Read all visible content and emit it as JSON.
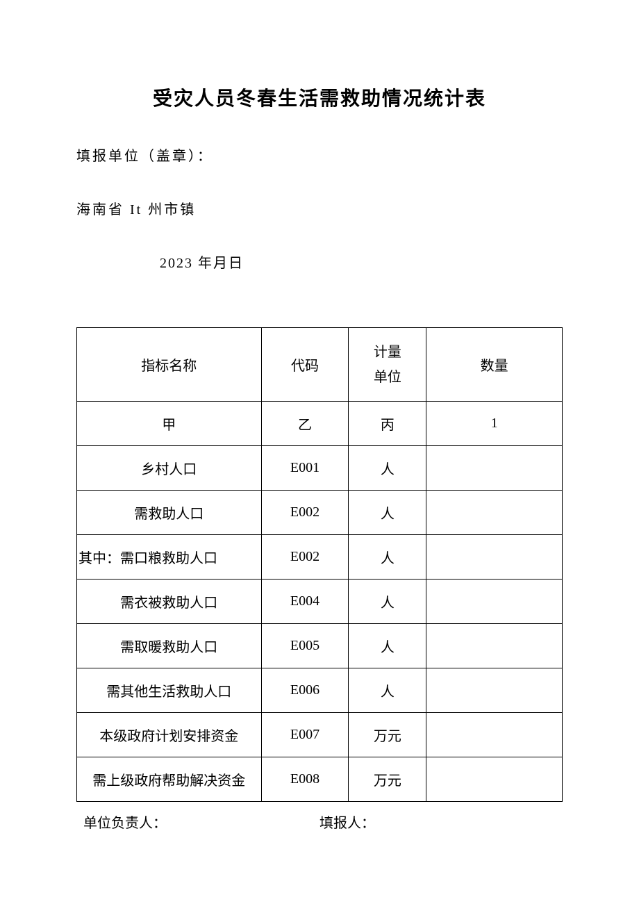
{
  "document": {
    "title": "受灾人员冬春生活需救助情况统计表",
    "reporting_unit_label": "填报单位（盖章）：",
    "location": "海南省 It 州市镇",
    "date": "2023 年月日",
    "footer": {
      "responsible_label": "单位负责人：",
      "filler_label": "填报人："
    }
  },
  "table": {
    "headers": {
      "indicator": "指标名称",
      "code": "代码",
      "unit_line1": "计量",
      "unit_line2": "单位",
      "amount": "数量"
    },
    "sub_headers": {
      "indicator": "甲",
      "code": "乙",
      "unit": "丙",
      "amount": "1"
    },
    "rows": [
      {
        "indicator": "乡村人口",
        "code": "E001",
        "unit": "人",
        "amount": "",
        "align": "center"
      },
      {
        "indicator": "需救助人口",
        "code": "E002",
        "unit": "人",
        "amount": "",
        "align": "center"
      },
      {
        "indicator": "其中：需口粮救助人口",
        "code": "E002",
        "unit": "人",
        "amount": "",
        "align": "left"
      },
      {
        "indicator": "需衣被救助人口",
        "code": "E004",
        "unit": "人",
        "amount": "",
        "align": "center"
      },
      {
        "indicator": "需取暖救助人口",
        "code": "E005",
        "unit": "人",
        "amount": "",
        "align": "center"
      },
      {
        "indicator": "需其他生活救助人口",
        "code": "E006",
        "unit": "人",
        "amount": "",
        "align": "center"
      },
      {
        "indicator": "本级政府计划安排资金",
        "code": "E007",
        "unit": "万元",
        "amount": "",
        "align": "center"
      },
      {
        "indicator": "需上级政府帮助解决资金",
        "code": "E008",
        "unit": "万元",
        "amount": "",
        "align": "center"
      }
    ],
    "styling": {
      "border_color": "#000000",
      "background_color": "#ffffff",
      "text_color": "#000000",
      "font_size_title": 28,
      "font_size_body": 20,
      "row_height_header": 106,
      "row_height_data": 64,
      "column_widths_pct": [
        38,
        18,
        16,
        28
      ]
    }
  }
}
